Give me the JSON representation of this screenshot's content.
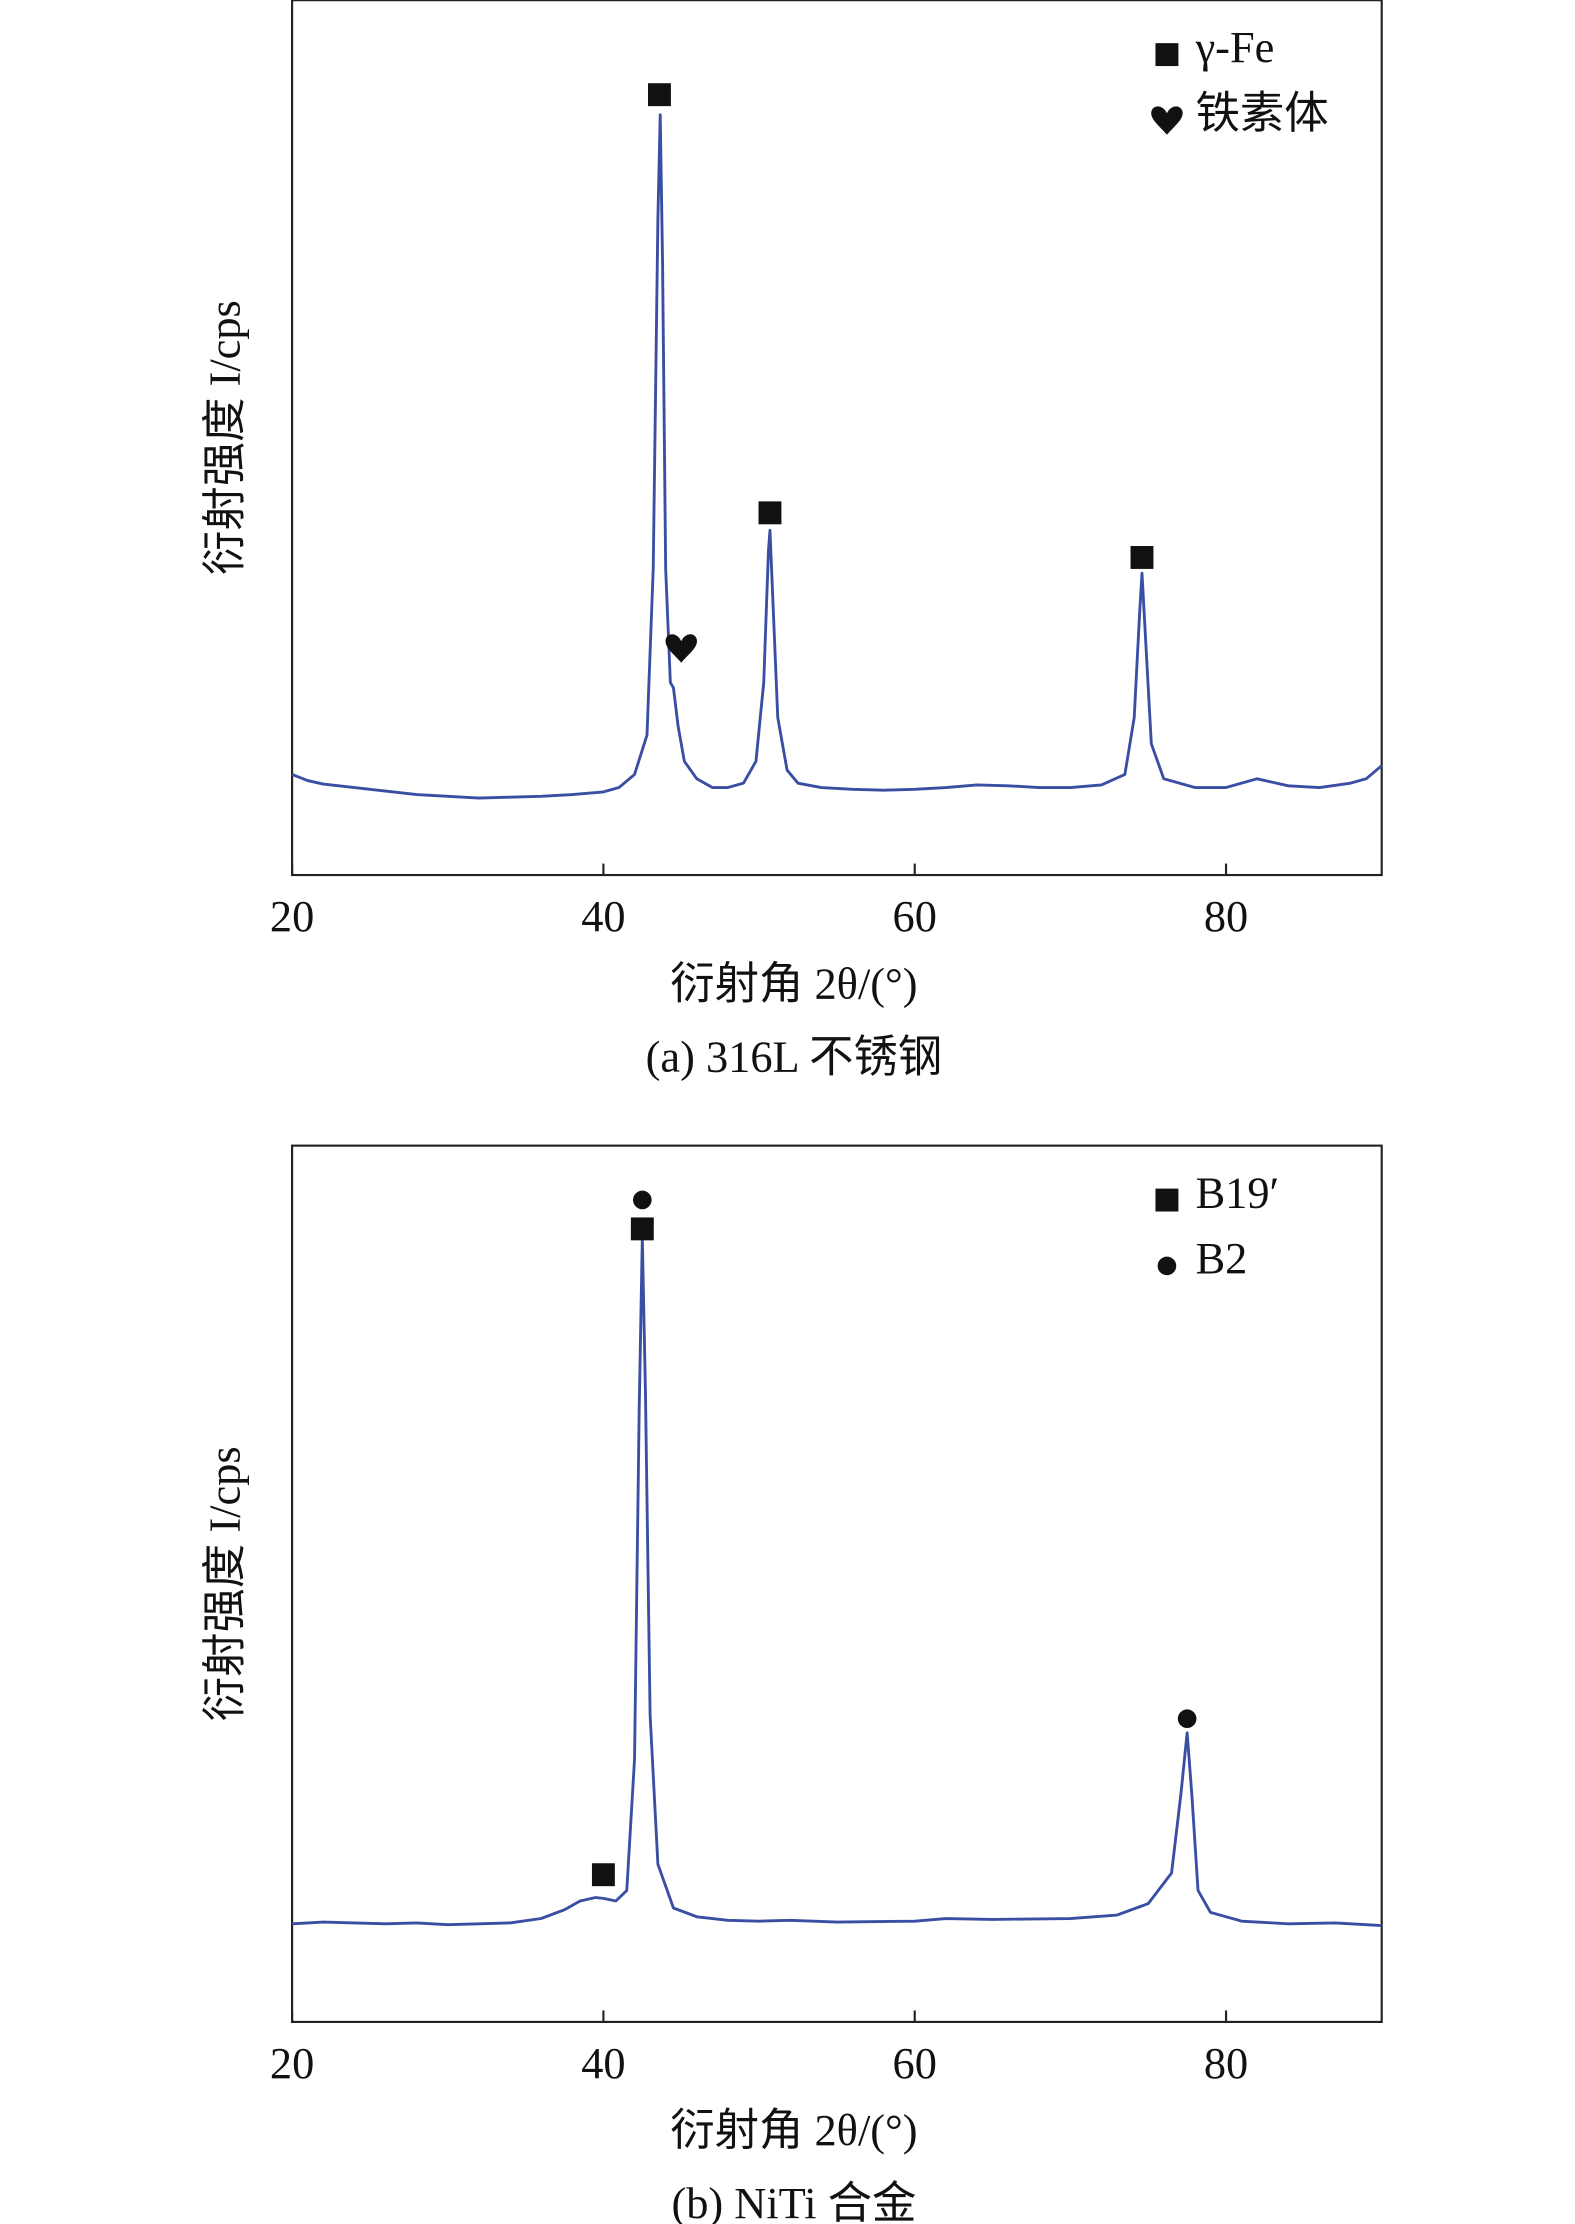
{
  "chart_data": [
    {
      "type": "line",
      "caption": "(a) 316L 不锈钢",
      "x_label": "衍射角 2θ/(°)",
      "y_label": "衍射强度 I/cps",
      "xlim": [
        20,
        90
      ],
      "xticks": [
        20,
        40,
        60,
        80
      ],
      "ylim": [
        0,
        100
      ],
      "x": [
        20,
        21,
        22,
        23,
        24,
        26,
        28,
        30,
        32,
        34,
        36,
        38,
        40,
        41,
        42,
        42.8,
        43.2,
        43.5,
        43.65,
        43.8,
        44.0,
        44.3,
        44.5,
        44.8,
        45.2,
        46,
        47,
        48,
        49,
        49.8,
        50.3,
        50.6,
        50.7,
        50.85,
        51.2,
        51.8,
        52.5,
        54,
        56,
        58,
        60,
        62,
        64,
        66,
        68,
        70,
        72,
        73.5,
        74.1,
        74.45,
        74.6,
        74.8,
        75.2,
        76,
        78,
        80,
        82,
        84,
        86,
        88,
        89,
        90
      ],
      "series": [
        {
          "color": "#3a4ea3",
          "values": [
            11.5,
            10.8,
            10.4,
            10.2,
            10,
            9.6,
            9.2,
            9,
            8.8,
            8.9,
            9,
            9.2,
            9.5,
            10,
            11.5,
            16,
            35,
            75,
            86.9,
            70,
            35,
            22,
            21.4,
            17,
            13,
            11,
            10,
            10,
            10.5,
            13,
            22,
            37,
            39.4,
            33,
            18,
            12,
            10.5,
            10,
            9.8,
            9.7,
            9.8,
            10,
            10.3,
            10.2,
            10,
            10,
            10.3,
            11.5,
            18,
            30,
            34.5,
            28,
            15,
            11,
            10,
            10,
            11,
            10.2,
            10,
            10.5,
            11,
            12.5
          ]
        }
      ],
      "markers": [
        {
          "name": "γ-Fe",
          "symbol": "square",
          "x": [
            43.6,
            50.7,
            74.6
          ],
          "y": [
            89.2,
            41.4,
            36.3
          ]
        },
        {
          "name": "铁素体",
          "symbol": "heart",
          "x": [
            45
          ],
          "y": [
            25.9
          ]
        }
      ]
    },
    {
      "type": "line",
      "caption": "(b) NiTi 合金",
      "x_label": "衍射角 2θ/(°)",
      "y_label": "衍射强度 I/cps",
      "xlim": [
        20,
        90
      ],
      "xticks": [
        20,
        40,
        60,
        80
      ],
      "ylim": [
        0,
        100
      ],
      "x": [
        20,
        22,
        24,
        26,
        28,
        30,
        32,
        34,
        36,
        37.5,
        38.5,
        39.5,
        40,
        40.8,
        41.5,
        42,
        42.3,
        42.5,
        42.7,
        43,
        43.5,
        44.5,
        46,
        48,
        50,
        52,
        55,
        60,
        62,
        65,
        70,
        73,
        75,
        76.5,
        77.1,
        77.5,
        77.8,
        78.2,
        79,
        81,
        84,
        87,
        90
      ],
      "series": [
        {
          "color": "#3a4ea3",
          "values": [
            11.2,
            11.4,
            11.3,
            11.2,
            11.3,
            11.1,
            11.2,
            11.3,
            11.8,
            12.8,
            13.8,
            14.2,
            14.1,
            13.8,
            15,
            30,
            70,
            89.4,
            72,
            35,
            18,
            13,
            12,
            11.6,
            11.5,
            11.6,
            11.4,
            11.5,
            11.8,
            11.7,
            11.8,
            12.2,
            13.5,
            17,
            26,
            33,
            26,
            15,
            12.5,
            11.5,
            11.2,
            11.3,
            11
          ]
        }
      ],
      "markers": [
        {
          "name": "B19′",
          "symbol": "square",
          "x": [
            42.5,
            40
          ],
          "y": [
            90.5,
            16.8
          ]
        },
        {
          "name": "B2",
          "symbol": "circle",
          "x": [
            42.5,
            77.5
          ],
          "y": [
            93.8,
            34.6
          ]
        }
      ]
    }
  ]
}
